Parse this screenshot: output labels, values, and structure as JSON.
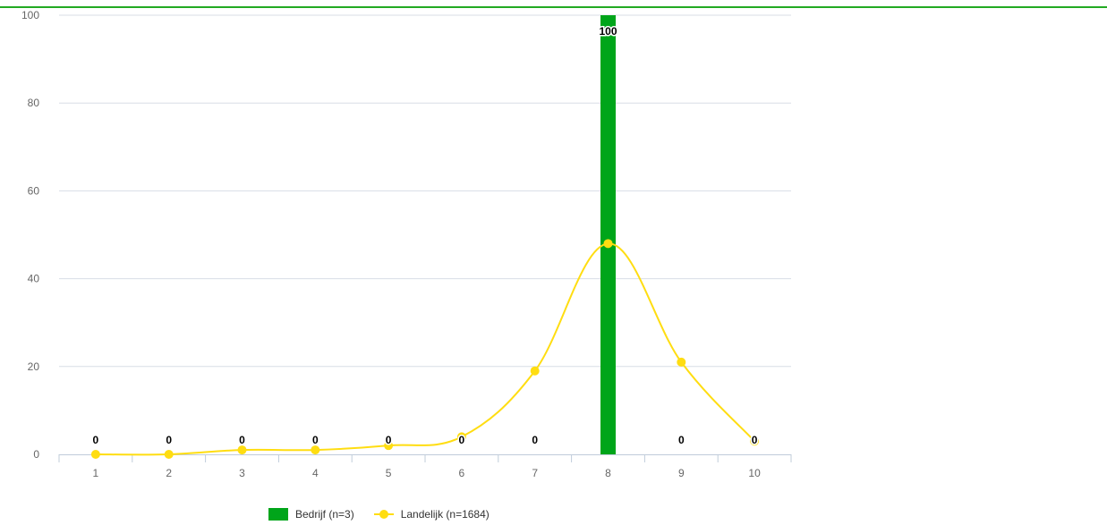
{
  "chart_data": {
    "type": "bar",
    "categories": [
      "1",
      "2",
      "3",
      "4",
      "5",
      "6",
      "7",
      "8",
      "9",
      "10"
    ],
    "series": [
      {
        "name": "Bedrijf (n=3)",
        "type": "bar",
        "color": "#00a51a",
        "values": [
          0,
          0,
          0,
          0,
          0,
          0,
          0,
          100,
          0,
          0
        ],
        "data_labels": [
          "0",
          "0",
          "0",
          "0",
          "0",
          "0",
          "0",
          "100",
          "0",
          "0"
        ]
      },
      {
        "name": "Landelijk (n=1684)",
        "type": "line",
        "color": "#ffdd11",
        "values": [
          0,
          0,
          1,
          1,
          2,
          4,
          19,
          48,
          21,
          3
        ]
      }
    ],
    "y_ticks": [
      "0",
      "20",
      "40",
      "60",
      "80",
      "100"
    ],
    "ylim": [
      0,
      100
    ],
    "grid": true,
    "legend_position": "bottom"
  }
}
